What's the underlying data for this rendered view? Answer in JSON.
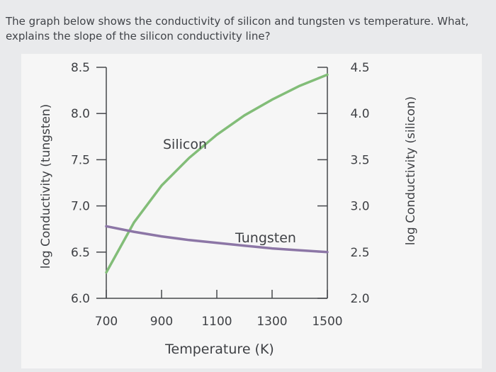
{
  "question": {
    "line1": "The graph below shows the conductivity of silicon and tungsten vs temperature. What,",
    "line2": "explains the slope of the silicon conductivity line?"
  },
  "chart_data": {
    "type": "line",
    "xlabel": "Temperature (K)",
    "ylabel_left": "log Conductivity (tungsten)",
    "ylabel_right": "log Conductivity (silicon)",
    "x_ticks": [
      700,
      900,
      1100,
      1300,
      1500
    ],
    "xlim": [
      700,
      1500
    ],
    "y_left_ticks": [
      "6.0",
      "6.5",
      "7.0",
      "7.5",
      "8.0",
      "8.5"
    ],
    "y_left_lim": [
      6.0,
      8.5
    ],
    "y_right_ticks": [
      "2.0",
      "2.5",
      "3.0",
      "3.5",
      "4.0",
      "4.5"
    ],
    "y_right_lim": [
      2.0,
      4.5
    ],
    "grid": false,
    "colors": {
      "silicon": "#82bd78",
      "tungsten": "#8c76a6",
      "axis": "#46484c"
    },
    "series": [
      {
        "name": "Silicon",
        "axis": "right",
        "x": [
          700,
          800,
          900,
          1000,
          1100,
          1200,
          1300,
          1400,
          1500
        ],
        "y": [
          2.28,
          2.82,
          3.22,
          3.52,
          3.77,
          3.98,
          4.15,
          4.3,
          4.42
        ]
      },
      {
        "name": "Tungsten",
        "axis": "left",
        "x": [
          700,
          800,
          900,
          1000,
          1100,
          1200,
          1300,
          1400,
          1500
        ],
        "y": [
          6.78,
          6.72,
          6.67,
          6.63,
          6.6,
          6.57,
          6.54,
          6.52,
          6.5
        ]
      }
    ]
  }
}
